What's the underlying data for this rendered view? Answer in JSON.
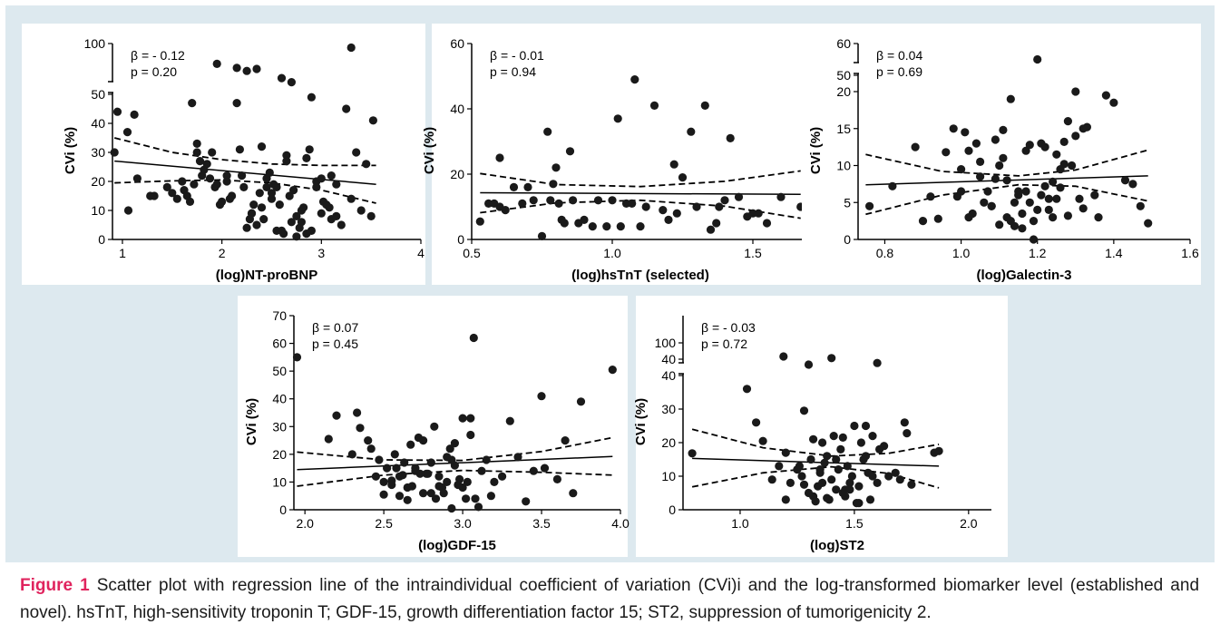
{
  "caption": {
    "label": "Figure 1",
    "text": "Scatter plot with regression line of the intraindividual coefficient of variation (CVi)i and the log-transformed biomarker level (established and novel). hsTnT, high-sensitivity troponin T; GDF-15, growth differentiation factor 15; ST2, suppression of tumorigenicity 2."
  },
  "colors": {
    "panel_bg": "#dde9ef",
    "points": "#1a1a1a",
    "caption_label": "#e0245e"
  },
  "chart_data": [
    {
      "type": "scatter",
      "xlabel": "(log)NT-proBNP",
      "ylabel": "CVi (%)",
      "stat_beta": "β = - 0.12",
      "stat_p": "p =  0.20",
      "xlim": [
        0.9,
        4
      ],
      "xticks": [
        "1",
        "2",
        "3",
        "4"
      ],
      "xtick_values": [
        1,
        2,
        3,
        4
      ],
      "ylim": [
        0,
        100
      ],
      "axis_break": true,
      "yticks": [
        "0",
        "10",
        "20",
        "30",
        "40",
        "50",
        "100"
      ],
      "ytick_values": [
        0,
        10,
        20,
        30,
        40,
        50,
        100
      ],
      "regression": {
        "x": [
          0.92,
          3.55
        ],
        "y": [
          27,
          19
        ]
      },
      "ci_upper": {
        "x": [
          0.92,
          1.5,
          2.0,
          2.5,
          3.0,
          3.55
        ],
        "y": [
          35,
          30,
          27.5,
          26,
          25.5,
          25.5
        ]
      },
      "ci_lower": {
        "x": [
          0.92,
          1.5,
          2.0,
          2.5,
          3.0,
          3.55
        ],
        "y": [
          19.5,
          20.2,
          20.5,
          19.5,
          17,
          12.5
        ]
      },
      "points": {
        "x": [
          0.92,
          0.95,
          1.05,
          1.12,
          1.06,
          1.15,
          1.28,
          1.32,
          1.45,
          1.5,
          1.55,
          1.6,
          1.62,
          1.68,
          1.7,
          1.72,
          1.75,
          1.78,
          1.8,
          1.82,
          1.85,
          1.88,
          1.9,
          1.93,
          1.95,
          1.98,
          2.0,
          2.05,
          2.08,
          2.1,
          2.15,
          2.18,
          2.2,
          2.22,
          2.25,
          2.28,
          2.3,
          2.32,
          2.35,
          2.38,
          2.4,
          2.42,
          2.45,
          2.48,
          2.5,
          2.52,
          2.55,
          2.58,
          2.6,
          2.62,
          2.65,
          2.68,
          2.7,
          2.72,
          2.75,
          2.78,
          2.8,
          2.82,
          2.85,
          2.88,
          2.9,
          2.95,
          3.0,
          3.02,
          3.05,
          3.08,
          3.1,
          3.15,
          3.2,
          3.25,
          3.3,
          3.35,
          3.4,
          3.45,
          3.5,
          3.52,
          2.15,
          2.3,
          2.45,
          2.55,
          2.65,
          2.75,
          2.85,
          1.95,
          2.25,
          2.35,
          2.6,
          2.7,
          2.9,
          3.0,
          1.65,
          2.05,
          2.5,
          2.8,
          3.1,
          1.75,
          2.4,
          2.95,
          3.15,
          3.3
        ],
        "y": [
          30,
          44,
          37,
          43,
          10,
          21,
          15,
          15,
          18,
          16,
          14,
          20,
          17,
          13,
          47,
          19,
          33,
          27,
          22,
          24,
          26,
          21,
          30,
          18,
          80,
          12,
          13,
          20,
          14,
          15,
          47,
          31,
          22,
          18,
          4,
          7,
          9,
          12,
          5,
          16,
          11,
          7,
          21,
          23,
          14,
          19,
          18,
          12,
          3,
          2,
          29,
          15,
          6,
          17,
          8,
          4,
          10,
          11,
          28,
          31,
          3,
          20,
          21,
          13,
          12,
          11,
          7,
          19,
          5,
          45,
          14,
          30,
          10,
          26,
          8,
          41,
          76,
          9,
          18,
          3,
          27,
          1,
          2,
          19,
          73,
          75,
          66,
          62,
          49,
          9,
          15,
          22,
          16,
          6,
          22,
          30,
          32,
          18,
          8,
          96
        ]
      }
    },
    {
      "type": "scatter",
      "xlabel": "(log)hsTnT (selected)",
      "ylabel": "CVi (%)",
      "stat_beta": "β = - 0.01",
      "stat_p": "p =    0.94",
      "xlim": [
        0.5,
        1.7
      ],
      "xticks": [
        "0.5",
        "1.0",
        "1.5"
      ],
      "xtick_values": [
        0.5,
        1.0,
        1.5
      ],
      "ylim": [
        0,
        60
      ],
      "axis_break": false,
      "yticks": [
        "0",
        "20",
        "40",
        "60"
      ],
      "ytick_values": [
        0,
        20,
        40,
        60
      ],
      "regression": {
        "x": [
          0.53,
          1.67
        ],
        "y": [
          14.3,
          13.8
        ]
      },
      "ci_upper": {
        "x": [
          0.53,
          0.8,
          1.1,
          1.4,
          1.67
        ],
        "y": [
          20.2,
          16.8,
          16.2,
          17.8,
          21
        ]
      },
      "ci_lower": {
        "x": [
          0.53,
          0.8,
          1.1,
          1.4,
          1.67
        ],
        "y": [
          8.2,
          11.2,
          12.0,
          10.2,
          6.5
        ]
      },
      "points": {
        "x": [
          0.53,
          0.56,
          0.6,
          0.6,
          0.62,
          0.65,
          0.68,
          0.72,
          0.75,
          0.77,
          0.78,
          0.8,
          0.82,
          0.83,
          0.85,
          0.88,
          0.9,
          0.93,
          0.95,
          1.0,
          1.02,
          1.05,
          1.08,
          1.1,
          1.12,
          1.15,
          1.18,
          1.2,
          1.22,
          1.25,
          1.28,
          1.3,
          1.33,
          1.35,
          1.38,
          1.4,
          1.42,
          1.45,
          1.48,
          1.5,
          1.52,
          1.55,
          1.6,
          1.67,
          0.58,
          0.7,
          0.86,
          0.98,
          1.07,
          1.23,
          1.37,
          0.79,
          0.81,
          1.03
        ],
        "y": [
          5.5,
          11,
          10,
          25,
          9,
          16,
          11,
          12,
          1,
          33,
          12,
          22,
          6,
          5,
          27,
          5,
          6,
          4,
          12,
          12,
          37,
          11,
          49,
          4,
          10,
          41,
          9,
          6,
          23,
          19,
          33,
          10,
          41,
          3,
          10,
          12,
          31,
          13,
          7,
          8,
          8,
          5,
          13,
          10,
          11,
          16,
          12,
          4,
          11,
          8,
          5,
          17,
          11,
          4
        ]
      }
    },
    {
      "type": "scatter",
      "xlabel": "(log)Galectin-3",
      "ylabel": "CVi (%)",
      "stat_beta": "β = 0.04",
      "stat_p": "p = 0.69",
      "xlim": [
        0.73,
        1.6
      ],
      "xticks": [
        "0.8",
        "1.0",
        "1.2",
        "1.4",
        "1.6"
      ],
      "xtick_values": [
        0.8,
        1.0,
        1.2,
        1.4,
        1.6
      ],
      "ylim": [
        0,
        60
      ],
      "axis_break": true,
      "yticks": [
        "0",
        "5",
        "10",
        "15",
        "20",
        "50",
        "60"
      ],
      "ytick_values": [
        0,
        5,
        10,
        15,
        20,
        50,
        60
      ],
      "regression": {
        "x": [
          0.75,
          1.49
        ],
        "y": [
          7.4,
          8.6
        ]
      },
      "ci_upper": {
        "x": [
          0.75,
          0.95,
          1.15,
          1.3,
          1.49
        ],
        "y": [
          11.5,
          9.2,
          8.6,
          9.4,
          12.1
        ]
      },
      "ci_lower": {
        "x": [
          0.75,
          0.95,
          1.15,
          1.3,
          1.49
        ],
        "y": [
          3.4,
          6.0,
          7.4,
          7.2,
          5.2
        ]
      },
      "points": {
        "x": [
          0.76,
          0.82,
          0.88,
          0.9,
          0.92,
          0.94,
          0.96,
          0.98,
          0.99,
          1.0,
          1.01,
          1.02,
          1.03,
          1.04,
          1.05,
          1.06,
          1.07,
          1.08,
          1.09,
          1.1,
          1.11,
          1.12,
          1.13,
          1.14,
          1.15,
          1.16,
          1.17,
          1.18,
          1.19,
          1.2,
          1.21,
          1.22,
          1.23,
          1.24,
          1.25,
          1.26,
          1.27,
          1.28,
          1.29,
          1.3,
          1.31,
          1.32,
          1.33,
          1.35,
          1.36,
          1.38,
          1.4,
          1.43,
          1.45,
          1.47,
          1.49,
          1.0,
          1.05,
          1.1,
          1.15,
          1.2,
          1.25,
          1.3,
          1.12,
          1.18,
          1.22,
          1.08,
          1.14,
          1.26,
          1.32,
          1.02,
          1.16,
          1.24,
          1.28,
          1.19,
          1.21,
          1.09,
          1.13,
          1.17,
          1.27,
          1.11,
          1.23
        ],
        "y": [
          4.5,
          7.2,
          12.5,
          2.5,
          5.8,
          2.8,
          11.8,
          15,
          5.8,
          9.5,
          14.5,
          12,
          3.5,
          13,
          8.5,
          5,
          6.5,
          4.5,
          13.5,
          10,
          14.8,
          8,
          19,
          5,
          6,
          3.5,
          12,
          5,
          2.5,
          55,
          13,
          12.5,
          4,
          3,
          11.5,
          7,
          13.2,
          16,
          10,
          20,
          5.5,
          15,
          15.2,
          6,
          3,
          19.5,
          18.5,
          8,
          7.5,
          4.5,
          2.2,
          6.5,
          10.5,
          2,
          6.5,
          4,
          5.5,
          14,
          3,
          12.8,
          7.2,
          4.5,
          1.8,
          9.5,
          4.2,
          3,
          1.5,
          7.8,
          3.2,
          0,
          6,
          8.2,
          2.5,
          6.5,
          10.2,
          11,
          5.5
        ]
      }
    },
    {
      "type": "scatter",
      "xlabel": "(log)GDF-15",
      "ylabel": "CVi (%)",
      "stat_beta": "β = 0.07",
      "stat_p": "p = 0.45",
      "xlim": [
        1.93,
        4
      ],
      "xticks": [
        "2.0",
        "2.5",
        "3.0",
        "3.5",
        "4.0"
      ],
      "xtick_values": [
        2.0,
        2.5,
        3.0,
        3.5,
        4.0
      ],
      "ylim": [
        0,
        70
      ],
      "axis_break": false,
      "yticks": [
        "0",
        "10",
        "20",
        "30",
        "40",
        "50",
        "60",
        "70"
      ],
      "ytick_values": [
        0,
        10,
        20,
        30,
        40,
        50,
        60,
        70
      ],
      "regression": {
        "x": [
          1.95,
          3.95
        ],
        "y": [
          14.5,
          19.2
        ]
      },
      "ci_upper": {
        "x": [
          1.95,
          2.5,
          3.0,
          3.5,
          3.95
        ],
        "y": [
          20.8,
          18.0,
          17.8,
          21.0,
          26.0
        ]
      },
      "ci_lower": {
        "x": [
          1.95,
          2.5,
          3.0,
          3.5,
          3.95
        ],
        "y": [
          8.5,
          12.5,
          14.2,
          13.5,
          12.5
        ]
      },
      "points": {
        "x": [
          1.95,
          2.15,
          2.2,
          2.3,
          2.33,
          2.35,
          2.4,
          2.42,
          2.45,
          2.47,
          2.5,
          2.52,
          2.55,
          2.57,
          2.6,
          2.62,
          2.65,
          2.67,
          2.7,
          2.72,
          2.75,
          2.77,
          2.8,
          2.82,
          2.85,
          2.87,
          2.9,
          2.92,
          2.95,
          2.97,
          3.0,
          3.02,
          3.05,
          3.07,
          3.1,
          3.12,
          3.15,
          3.2,
          3.25,
          3.3,
          3.35,
          3.4,
          3.45,
          3.5,
          3.52,
          3.6,
          3.65,
          3.7,
          3.75,
          3.95,
          2.5,
          2.6,
          2.7,
          2.8,
          2.9,
          3.0,
          2.55,
          2.65,
          2.75,
          2.85,
          2.95,
          3.05,
          2.58,
          2.68,
          2.78,
          2.88,
          2.98,
          3.08,
          2.73,
          2.83,
          2.93,
          3.03,
          2.63,
          2.93,
          3.18
        ],
        "y": [
          55,
          25.5,
          34,
          20,
          35,
          29.5,
          25,
          22,
          12,
          18,
          10,
          15,
          9,
          20,
          5,
          12.5,
          8,
          23.5,
          15,
          26,
          6,
          13,
          17,
          30,
          12,
          8,
          19,
          22,
          24,
          9,
          33,
          4,
          27,
          62,
          1,
          14,
          18,
          10,
          12,
          32,
          19,
          3,
          14,
          41,
          15,
          11,
          25,
          6,
          39,
          50.5,
          5.5,
          12,
          14,
          6,
          10,
          8,
          10.5,
          3.5,
          25,
          8.5,
          16,
          33,
          15,
          8.5,
          13,
          6,
          11,
          4,
          13,
          4,
          18,
          10,
          17,
          0.5,
          5
        ]
      }
    },
    {
      "type": "scatter",
      "xlabel": "(log)ST2",
      "ylabel": "CVi (%)",
      "stat_beta": "β = - 0.03",
      "stat_p": "p =   0.72",
      "xlim": [
        0.75,
        2.1
      ],
      "xticks": [
        "1.0",
        "1.5",
        "2.0"
      ],
      "xtick_values": [
        1.0,
        1.5,
        2.0
      ],
      "ylim": [
        0,
        100
      ],
      "axis_break": true,
      "yticks": [
        "0",
        "10",
        "20",
        "30",
        "40",
        "40",
        "100"
      ],
      "ytick_values": [
        0,
        10,
        20,
        30,
        40,
        40,
        100
      ],
      "regression": {
        "x": [
          0.79,
          1.87
        ],
        "y": [
          15.3,
          13.0
        ]
      },
      "ci_upper": {
        "x": [
          0.79,
          1.1,
          1.4,
          1.65,
          1.87
        ],
        "y": [
          24.0,
          18.5,
          16.0,
          16.8,
          19.5
        ]
      },
      "ci_lower": {
        "x": [
          0.79,
          1.1,
          1.4,
          1.65,
          1.87
        ],
        "y": [
          6.8,
          11.0,
          12.8,
          10.8,
          6.5
        ]
      },
      "points": {
        "x": [
          0.79,
          1.03,
          1.07,
          1.1,
          1.14,
          1.17,
          1.2,
          1.22,
          1.25,
          1.27,
          1.28,
          1.3,
          1.31,
          1.32,
          1.33,
          1.34,
          1.35,
          1.36,
          1.37,
          1.38,
          1.39,
          1.4,
          1.41,
          1.42,
          1.43,
          1.44,
          1.45,
          1.46,
          1.47,
          1.48,
          1.49,
          1.5,
          1.51,
          1.52,
          1.53,
          1.54,
          1.55,
          1.56,
          1.57,
          1.58,
          1.6,
          1.61,
          1.63,
          1.65,
          1.68,
          1.7,
          1.72,
          1.73,
          1.75,
          1.85,
          1.87,
          1.19,
          1.3,
          1.4,
          1.6,
          1.2,
          1.35,
          1.45,
          1.55,
          1.28,
          1.38,
          1.48,
          1.58,
          1.26,
          1.36,
          1.46,
          1.52,
          1.42,
          1.32
        ],
        "y": [
          16.8,
          36,
          26,
          20.5,
          9,
          13,
          17,
          8,
          12,
          10,
          29.5,
          5,
          15,
          21,
          2.5,
          7,
          11,
          20,
          14,
          16,
          3,
          9,
          22,
          6,
          12,
          18,
          21.5,
          4,
          13,
          8,
          10,
          25,
          2,
          7,
          20,
          15,
          25,
          11,
          3,
          22,
          8,
          18,
          19,
          10,
          11,
          9,
          26,
          22.8,
          7.5,
          17,
          17.5,
          75,
          60,
          72,
          63,
          3,
          12,
          5,
          16,
          7.5,
          3.5,
          6,
          10,
          13,
          8,
          6,
          2,
          15,
          4
        ]
      }
    }
  ]
}
